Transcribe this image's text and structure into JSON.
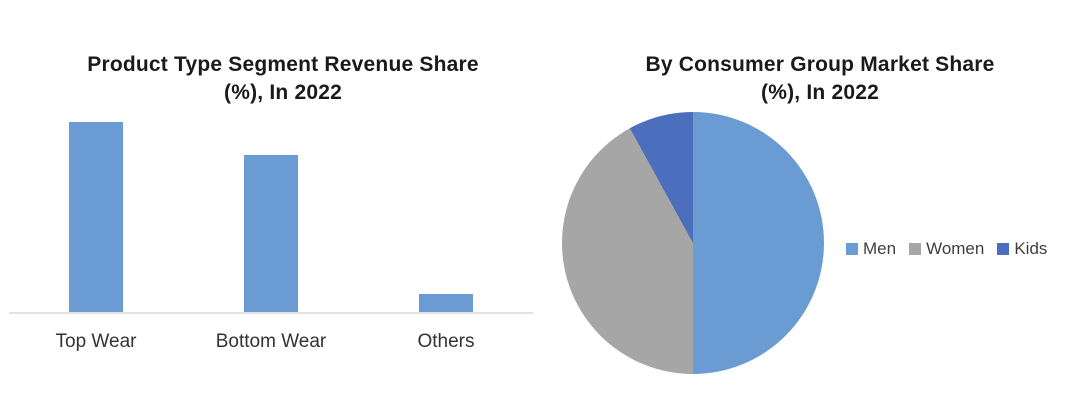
{
  "chart_data": [
    {
      "type": "bar",
      "title": "Product Type Segment Revenue Share (%), In 2022",
      "title_lines": [
        "Product Type Segment Revenue Share",
        "(%), In 2022"
      ],
      "categories": [
        "Top Wear",
        "Bottom Wear",
        "Others"
      ],
      "values": [
        52,
        43,
        5
      ],
      "unit": "%",
      "ylim": [
        0,
        55
      ],
      "grid": false,
      "value_labels_shown": false,
      "bar_color": "#6B9BD3",
      "axis_line_color": "#E2E2E2",
      "category_label_color": "#333333",
      "title_color": "#1a1a1a"
    },
    {
      "type": "pie",
      "title": "By Consumer Group Market Share (%), In 2022",
      "title_lines": [
        "By Consumer Group Market Share",
        "(%), In 2022"
      ],
      "categories": [
        "Men",
        "Women",
        "Kids"
      ],
      "values": [
        50,
        42,
        8
      ],
      "colors": [
        "#6B9BD3",
        "#A6A6A6",
        "#4C6FBD"
      ],
      "legend_position": "right",
      "legend_entries": [
        "Men",
        "Women",
        "Kids"
      ],
      "start_angle_deg": 0,
      "direction": "clockwise",
      "title_color": "#1a1a1a"
    }
  ]
}
